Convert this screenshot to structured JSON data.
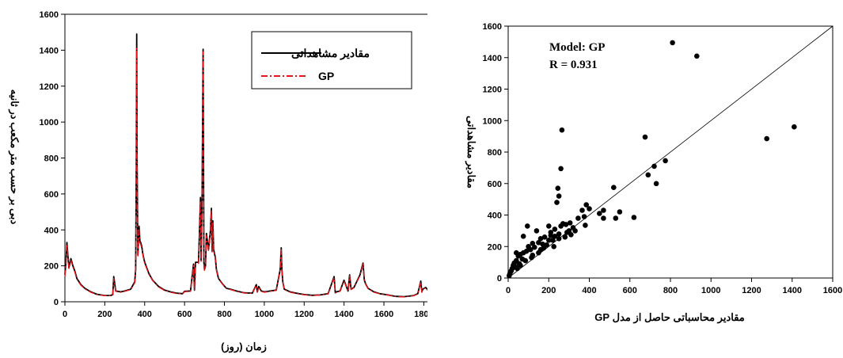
{
  "chart_data": [
    {
      "type": "line",
      "xlabel": "زمان (روز)",
      "ylabel": "دبی بر حسب متر مکعب در ثانیه",
      "xlim": [
        0,
        1850
      ],
      "ylim": [
        0,
        1600
      ],
      "xticks": [
        "0",
        "200",
        "400",
        "600",
        "800",
        "1000",
        "1200",
        "1400",
        "1600",
        "1800"
      ],
      "yticks": [
        "0",
        "200",
        "400",
        "600",
        "800",
        "1000",
        "1200",
        "1400",
        "1600"
      ],
      "legend_position": "top-right",
      "series": [
        {
          "name": "مقادیر مشاهداتی",
          "color": "#000000",
          "x": [
            0,
            5,
            10,
            20,
            30,
            40,
            50,
            60,
            80,
            100,
            130,
            160,
            200,
            230,
            240,
            245,
            255,
            280,
            300,
            330,
            350,
            355,
            358,
            360,
            362,
            366,
            372,
            376,
            380,
            385,
            392,
            400,
            420,
            440,
            470,
            500,
            530,
            560,
            590,
            600,
            630,
            645,
            650,
            655,
            670,
            680,
            683,
            688,
            693,
            697,
            700,
            705,
            710,
            720,
            730,
            735,
            738,
            742,
            746,
            750,
            754,
            760,
            770,
            790,
            810,
            830,
            860,
            900,
            940,
            960,
            965,
            972,
            985,
            1000,
            1030,
            1060,
            1080,
            1085,
            1088,
            1093,
            1100,
            1130,
            1160,
            1200,
            1240,
            1280,
            1320,
            1350,
            1356,
            1362,
            1380,
            1400,
            1420,
            1428,
            1435,
            1450,
            1480,
            1495,
            1502,
            1508,
            1520,
            1550,
            1580,
            1620,
            1660,
            1700,
            1750,
            1770,
            1785,
            1790,
            1795,
            1810,
            1820
          ],
          "values": [
            150,
            220,
            330,
            190,
            240,
            200,
            170,
            130,
            95,
            75,
            55,
            42,
            35,
            35,
            40,
            140,
            60,
            55,
            60,
            70,
            110,
            180,
            780,
            1490,
            780,
            260,
            420,
            340,
            330,
            310,
            260,
            220,
            160,
            120,
            85,
            65,
            55,
            48,
            45,
            58,
            60,
            210,
            65,
            220,
            220,
            580,
            230,
            580,
            1405,
            220,
            180,
            200,
            380,
            290,
            400,
            520,
            280,
            450,
            290,
            270,
            250,
            180,
            130,
            100,
            75,
            70,
            60,
            50,
            48,
            95,
            55,
            85,
            60,
            55,
            60,
            65,
            180,
            300,
            180,
            110,
            70,
            55,
            48,
            40,
            36,
            38,
            45,
            140,
            50,
            55,
            60,
            120,
            60,
            150,
            70,
            80,
            150,
            215,
            120,
            100,
            75,
            55,
            45,
            38,
            30,
            28,
            35,
            45,
            115,
            55,
            70,
            80,
            65
          ]
        },
        {
          "name": "GP",
          "color": "#e8141c",
          "x": [
            0,
            5,
            10,
            20,
            30,
            40,
            50,
            60,
            80,
            100,
            130,
            160,
            200,
            230,
            240,
            245,
            255,
            280,
            300,
            330,
            350,
            355,
            358,
            360,
            362,
            366,
            372,
            376,
            380,
            385,
            392,
            400,
            420,
            440,
            470,
            500,
            530,
            560,
            590,
            600,
            630,
            645,
            650,
            655,
            670,
            680,
            683,
            688,
            693,
            697,
            700,
            705,
            710,
            720,
            730,
            735,
            738,
            742,
            746,
            750,
            754,
            760,
            770,
            790,
            810,
            830,
            860,
            900,
            940,
            960,
            965,
            972,
            985,
            1000,
            1030,
            1060,
            1080,
            1085,
            1088,
            1093,
            1100,
            1130,
            1160,
            1200,
            1240,
            1280,
            1320,
            1350,
            1356,
            1362,
            1380,
            1400,
            1420,
            1428,
            1435,
            1450,
            1480,
            1495,
            1502,
            1508,
            1520,
            1550,
            1580,
            1620,
            1660,
            1700,
            1750,
            1770,
            1785,
            1790,
            1795,
            1810,
            1820
          ],
          "values": [
            140,
            210,
            320,
            185,
            230,
            195,
            165,
            125,
            92,
            72,
            53,
            40,
            34,
            34,
            38,
            130,
            58,
            53,
            58,
            68,
            105,
            170,
            740,
            1410,
            740,
            255,
            400,
            330,
            320,
            300,
            255,
            215,
            155,
            118,
            82,
            63,
            53,
            46,
            44,
            56,
            58,
            200,
            63,
            210,
            210,
            560,
            225,
            560,
            1390,
            215,
            175,
            195,
            370,
            285,
            390,
            510,
            275,
            440,
            285,
            265,
            245,
            175,
            128,
            98,
            73,
            68,
            58,
            49,
            47,
            92,
            53,
            82,
            58,
            53,
            58,
            63,
            175,
            290,
            175,
            108,
            68,
            53,
            46,
            39,
            35,
            37,
            44,
            135,
            49,
            53,
            58,
            115,
            58,
            145,
            68,
            78,
            145,
            210,
            118,
            98,
            73,
            53,
            44,
            37,
            29,
            27,
            34,
            44,
            110,
            53,
            68,
            78,
            63
          ]
        }
      ]
    },
    {
      "type": "scatter",
      "xlabel": "مقادیر محاسباتی حاصل از مدل  GP",
      "ylabel": "مقادیر مشاهداتی",
      "xlim": [
        0,
        1600
      ],
      "ylim": [
        0,
        1600
      ],
      "xticks": [
        "0",
        "200",
        "400",
        "600",
        "800",
        "1000",
        "1200",
        "1400",
        "1600"
      ],
      "yticks": [
        "0",
        "200",
        "400",
        "600",
        "800",
        "1000",
        "1200",
        "1400",
        "1600"
      ],
      "annotations": [
        "Model: GP",
        "R = 0.931"
      ],
      "reference_line": "y = x",
      "points": [
        [
          810,
          1495
        ],
        [
          930,
          1410
        ],
        [
          1410,
          960
        ],
        [
          1275,
          885
        ],
        [
          265,
          940
        ],
        [
          675,
          895
        ],
        [
          260,
          695
        ],
        [
          690,
          655
        ],
        [
          720,
          710
        ],
        [
          775,
          745
        ],
        [
          730,
          600
        ],
        [
          520,
          575
        ],
        [
          245,
          570
        ],
        [
          250,
          520
        ],
        [
          240,
          480
        ],
        [
          385,
          465
        ],
        [
          400,
          440
        ],
        [
          365,
          430
        ],
        [
          470,
          430
        ],
        [
          450,
          410
        ],
        [
          550,
          420
        ],
        [
          620,
          385
        ],
        [
          530,
          380
        ],
        [
          375,
          390
        ],
        [
          470,
          380
        ],
        [
          345,
          380
        ],
        [
          305,
          350
        ],
        [
          270,
          345
        ],
        [
          285,
          340
        ],
        [
          320,
          320
        ],
        [
          380,
          335
        ],
        [
          260,
          330
        ],
        [
          300,
          300
        ],
        [
          230,
          310
        ],
        [
          250,
          280
        ],
        [
          290,
          290
        ],
        [
          210,
          270
        ],
        [
          230,
          265
        ],
        [
          180,
          260
        ],
        [
          160,
          250
        ],
        [
          200,
          240
        ],
        [
          150,
          225
        ],
        [
          120,
          220
        ],
        [
          170,
          215
        ],
        [
          100,
          200
        ],
        [
          130,
          195
        ],
        [
          110,
          180
        ],
        [
          90,
          170
        ],
        [
          75,
          160
        ],
        [
          60,
          150
        ],
        [
          50,
          140
        ],
        [
          70,
          120
        ],
        [
          40,
          110
        ],
        [
          30,
          95
        ],
        [
          55,
          90
        ],
        [
          25,
          80
        ],
        [
          35,
          70
        ],
        [
          20,
          60
        ],
        [
          15,
          45
        ],
        [
          10,
          35
        ],
        [
          8,
          25
        ],
        [
          5,
          15
        ],
        [
          95,
          330
        ],
        [
          140,
          300
        ],
        [
          200,
          330
        ],
        [
          75,
          265
        ],
        [
          40,
          160
        ],
        [
          160,
          180
        ],
        [
          220,
          240
        ],
        [
          190,
          210
        ],
        [
          210,
          290
        ],
        [
          120,
          145
        ],
        [
          85,
          110
        ],
        [
          60,
          80
        ],
        [
          45,
          60
        ],
        [
          150,
          160
        ],
        [
          175,
          190
        ],
        [
          250,
          250
        ],
        [
          280,
          260
        ],
        [
          310,
          275
        ],
        [
          330,
          300
        ],
        [
          225,
          200
        ],
        [
          115,
          130
        ]
      ]
    }
  ]
}
